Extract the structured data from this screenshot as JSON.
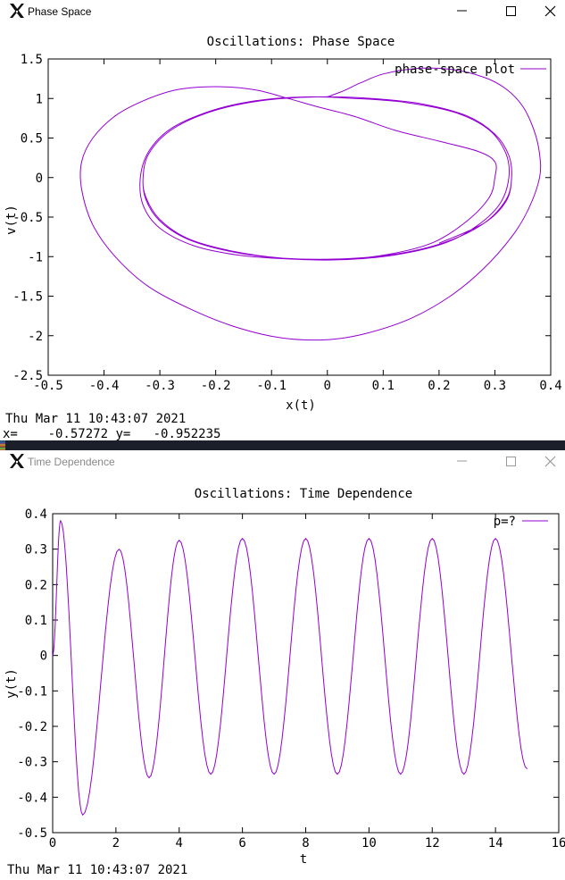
{
  "phase_window": {
    "title": "Phase Space",
    "footer_date": "Thu Mar 11 10:43:07 2021",
    "status_x_label": "x=",
    "status_x_value": "-0.57272",
    "status_y_label": "y=",
    "status_y_value": "-0.952235"
  },
  "time_window": {
    "title": "Time Dependence",
    "footer_date": "Thu Mar 11 10:43:07 2021"
  },
  "colors": {
    "curve": "#9400d3",
    "frame": "#000000"
  },
  "icons": {
    "app": "x-window-logo-icon",
    "minimize": "minimize-icon",
    "maximize": "maximize-icon",
    "close": "close-icon"
  },
  "chart_data": [
    {
      "type": "line",
      "title": "Oscillations: Phase Space",
      "xlabel": "x(t)",
      "ylabel": "v(t)",
      "xlim": [
        -0.5,
        0.4
      ],
      "ylim": [
        -2.5,
        1.5
      ],
      "xticks": [
        "-0.5",
        "-0.4",
        "-0.3",
        "-0.2",
        "-0.1",
        "0",
        "0.1",
        "0.2",
        "0.3",
        "0.4"
      ],
      "yticks": [
        "-2.5",
        "-2",
        "-1.5",
        "-1",
        "-0.5",
        "0",
        "0.5",
        "1",
        "1.5"
      ],
      "legend": "top-right",
      "grid": false,
      "series": [
        {
          "name": "phase-space plot",
          "points": [
            [
              0.0,
              1.02
            ],
            [
              0.03,
              1.1
            ],
            [
              0.06,
              1.2
            ],
            [
              0.1,
              1.31
            ],
            [
              0.16,
              1.38
            ],
            [
              0.22,
              1.37
            ],
            [
              0.28,
              1.27
            ],
            [
              0.32,
              1.12
            ],
            [
              0.35,
              0.9
            ],
            [
              0.37,
              0.6
            ],
            [
              0.38,
              0.3
            ],
            [
              0.38,
              0.0
            ],
            [
              0.36,
              -0.4
            ],
            [
              0.33,
              -0.75
            ],
            [
              0.28,
              -1.15
            ],
            [
              0.22,
              -1.5
            ],
            [
              0.15,
              -1.78
            ],
            [
              0.07,
              -1.97
            ],
            [
              0.0,
              -2.05
            ],
            [
              -0.08,
              -2.03
            ],
            [
              -0.16,
              -1.9
            ],
            [
              -0.24,
              -1.68
            ],
            [
              -0.32,
              -1.38
            ],
            [
              -0.38,
              -1.0
            ],
            [
              -0.42,
              -0.6
            ],
            [
              -0.44,
              -0.15
            ],
            [
              -0.44,
              0.2
            ],
            [
              -0.42,
              0.5
            ],
            [
              -0.38,
              0.78
            ],
            [
              -0.33,
              0.97
            ],
            [
              -0.27,
              1.11
            ],
            [
              -0.2,
              1.15
            ],
            [
              -0.13,
              1.11
            ],
            [
              -0.07,
              1.0
            ],
            [
              -0.02,
              0.9
            ],
            [
              0.05,
              0.77
            ],
            [
              0.12,
              0.6
            ],
            [
              0.2,
              0.46
            ],
            [
              0.27,
              0.33
            ],
            [
              0.3,
              0.2
            ],
            [
              0.3,
              0.0
            ],
            [
              0.29,
              -0.25
            ],
            [
              0.25,
              -0.55
            ],
            [
              0.19,
              -0.82
            ],
            [
              0.11,
              -0.97
            ],
            [
              0.02,
              -1.04
            ],
            [
              -0.07,
              -1.03
            ],
            [
              -0.16,
              -0.98
            ],
            [
              -0.24,
              -0.86
            ],
            [
              -0.3,
              -0.64
            ],
            [
              -0.33,
              -0.35
            ],
            [
              -0.335,
              0.0
            ],
            [
              -0.32,
              0.33
            ],
            [
              -0.28,
              0.62
            ],
            [
              -0.21,
              0.84
            ],
            [
              -0.13,
              0.97
            ],
            [
              -0.04,
              1.02
            ],
            [
              0.05,
              1.0
            ],
            [
              0.14,
              0.95
            ],
            [
              0.23,
              0.82
            ],
            [
              0.29,
              0.6
            ],
            [
              0.32,
              0.3
            ],
            [
              0.325,
              0.0
            ],
            [
              0.31,
              -0.32
            ],
            [
              0.27,
              -0.6
            ],
            [
              0.21,
              -0.83
            ],
            [
              0.12,
              -0.98
            ],
            [
              0.02,
              -1.04
            ],
            [
              -0.08,
              -1.02
            ],
            [
              -0.17,
              -0.93
            ],
            [
              -0.25,
              -0.77
            ],
            [
              -0.3,
              -0.53
            ],
            [
              -0.325,
              -0.25
            ],
            [
              -0.33,
              0.0
            ],
            [
              -0.32,
              0.3
            ],
            [
              -0.28,
              0.6
            ],
            [
              -0.21,
              0.83
            ],
            [
              -0.12,
              0.97
            ],
            [
              -0.02,
              1.02
            ],
            [
              0.08,
              1.0
            ],
            [
              0.17,
              0.93
            ],
            [
              0.25,
              0.78
            ],
            [
              0.3,
              0.55
            ],
            [
              0.325,
              0.28
            ],
            [
              0.33,
              0.0
            ],
            [
              0.32,
              -0.28
            ],
            [
              0.28,
              -0.58
            ],
            [
              0.21,
              -0.82
            ],
            [
              0.12,
              -0.97
            ],
            [
              0.02,
              -1.03
            ],
            [
              -0.08,
              -1.02
            ],
            [
              -0.17,
              -0.94
            ],
            [
              -0.25,
              -0.78
            ],
            [
              -0.3,
              -0.55
            ],
            [
              -0.325,
              -0.28
            ],
            [
              -0.33,
              0.0
            ],
            [
              -0.32,
              0.3
            ],
            [
              -0.28,
              0.6
            ],
            [
              -0.21,
              0.83
            ],
            [
              -0.12,
              0.97
            ],
            [
              -0.02,
              1.02
            ],
            [
              0.08,
              1.0
            ],
            [
              0.17,
              0.93
            ],
            [
              0.25,
              0.78
            ],
            [
              0.3,
              0.55
            ],
            [
              0.325,
              0.28
            ],
            [
              0.33,
              0.0
            ],
            [
              0.32,
              -0.3
            ],
            [
              0.28,
              -0.58
            ],
            [
              0.2,
              -0.83
            ]
          ]
        }
      ]
    },
    {
      "type": "line",
      "title": "Oscillations: Time Dependence",
      "xlabel": "t",
      "ylabel": "y(t)",
      "xlim": [
        0,
        16
      ],
      "ylim": [
        -0.5,
        0.4
      ],
      "xticks": [
        "0",
        "2",
        "4",
        "6",
        "8",
        "10",
        "12",
        "14",
        "16"
      ],
      "yticks": [
        "-0.5",
        "-0.4",
        "-0.3",
        "-0.2",
        "-0.1",
        "0",
        "0.1",
        "0.2",
        "0.3",
        "0.4"
      ],
      "legend": "top-right",
      "grid": false,
      "series": [
        {
          "name": "p=?",
          "t_end": 15.0,
          "extrema": [
            [
              0.0,
              0.0
            ],
            [
              0.25,
              0.38
            ],
            [
              0.95,
              -0.45
            ],
            [
              2.1,
              0.3
            ],
            [
              3.05,
              -0.345
            ],
            [
              4.0,
              0.325
            ],
            [
              5.0,
              -0.335
            ],
            [
              6.0,
              0.33
            ],
            [
              7.0,
              -0.335
            ],
            [
              8.0,
              0.33
            ],
            [
              9.0,
              -0.335
            ],
            [
              10.0,
              0.33
            ],
            [
              11.0,
              -0.335
            ],
            [
              12.0,
              0.33
            ],
            [
              13.0,
              -0.335
            ],
            [
              14.0,
              0.33
            ],
            [
              15.0,
              -0.32
            ]
          ]
        }
      ]
    }
  ]
}
